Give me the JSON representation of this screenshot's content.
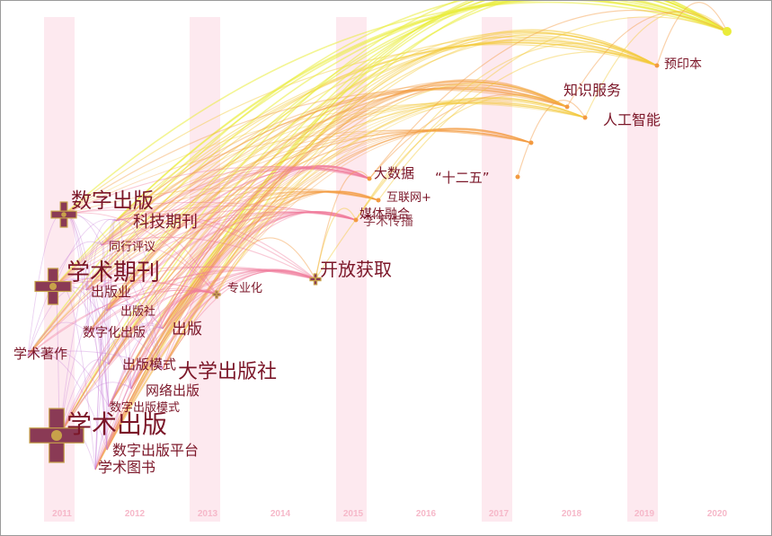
{
  "years": [
    "2011",
    "2012",
    "2013",
    "2014",
    "2015",
    "2016",
    "2017",
    "2018",
    "2019",
    "2020"
  ],
  "keywords": [
    {
      "id": "k1",
      "text": "数字出版",
      "year": "2011"
    },
    {
      "id": "k2",
      "text": "科技期刊",
      "year": "2011"
    },
    {
      "id": "k3",
      "text": "同行评议",
      "year": "2011"
    },
    {
      "id": "k4",
      "text": "学术期刊",
      "year": "2011"
    },
    {
      "id": "k5",
      "text": "出版业",
      "year": "2011"
    },
    {
      "id": "k6",
      "text": "出版社",
      "year": "2011"
    },
    {
      "id": "k7",
      "text": "数字化出版",
      "year": "2011"
    },
    {
      "id": "k8",
      "text": "出版",
      "year": "2011"
    },
    {
      "id": "k9",
      "text": "学术著作",
      "year": "2011"
    },
    {
      "id": "k10",
      "text": "出版模式",
      "year": "2011"
    },
    {
      "id": "k11",
      "text": "大学出版社",
      "year": "2011"
    },
    {
      "id": "k12",
      "text": "网络出版",
      "year": "2011"
    },
    {
      "id": "k13",
      "text": "数字出版模式",
      "year": "2011"
    },
    {
      "id": "k14",
      "text": "学术出版",
      "year": "2011"
    },
    {
      "id": "k15",
      "text": "数字出版平台",
      "year": "2011"
    },
    {
      "id": "k16",
      "text": "学术图书",
      "year": "2011"
    },
    {
      "id": "k17",
      "text": "专业化",
      "year": "2013"
    },
    {
      "id": "k18",
      "text": "开放获取",
      "year": "2014"
    },
    {
      "id": "k19",
      "text": "大数据",
      "year": "2015"
    },
    {
      "id": "k20",
      "text": "“十二五”",
      "year": "2015"
    },
    {
      "id": "k21",
      "text": "互联网+",
      "year": "2015"
    },
    {
      "id": "k22",
      "text": "媒体融合",
      "year": "2015"
    },
    {
      "id": "k23",
      "text": "学术传播",
      "year": "2015"
    },
    {
      "id": "k24",
      "text": "知识服务",
      "year": "2018"
    },
    {
      "id": "k25",
      "text": "人工智能",
      "year": "2018"
    },
    {
      "id": "k26",
      "text": "预印本",
      "year": "2019"
    }
  ],
  "colors": {
    "band": "#fde9ef",
    "label": "#7b1628",
    "year_label": "#f6b8c9",
    "node_frequency": "#8a3a55",
    "node_core": "#c7a24a",
    "link_2011": "#c77ad8",
    "link_2013": "#f07a9a",
    "link_2015": "#f39a40",
    "link_2018": "#f3c93a",
    "link_2020": "#eaec3a",
    "border": "#9a9a9a"
  }
}
